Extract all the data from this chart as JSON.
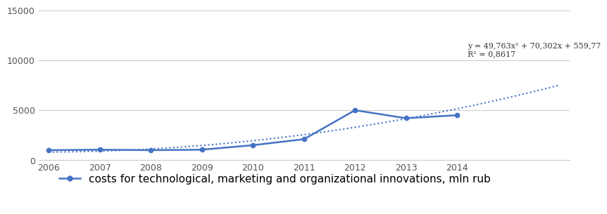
{
  "years": [
    2006,
    2007,
    2008,
    2009,
    2010,
    2011,
    2012,
    2013,
    2014
  ],
  "values": [
    1000,
    1050,
    1000,
    1050,
    1500,
    2100,
    5000,
    4200,
    4500
  ],
  "line_color": "#4472C4",
  "trend_color": "#4472C4",
  "ylim": [
    0,
    15000
  ],
  "yticks": [
    0,
    5000,
    10000,
    15000
  ],
  "equation_text": "y = 49,763x² + 70,302x + 559,77",
  "r2_text": "R² = 0,8617",
  "legend_label": "costs for technological, marketing and organizational innovations, mln rub",
  "bg_color": "#ffffff",
  "grid_color": "#cccccc",
  "tick_color": "#555555",
  "tick_fontsize": 9,
  "annot_fontsize": 8,
  "legend_fontsize": 11
}
